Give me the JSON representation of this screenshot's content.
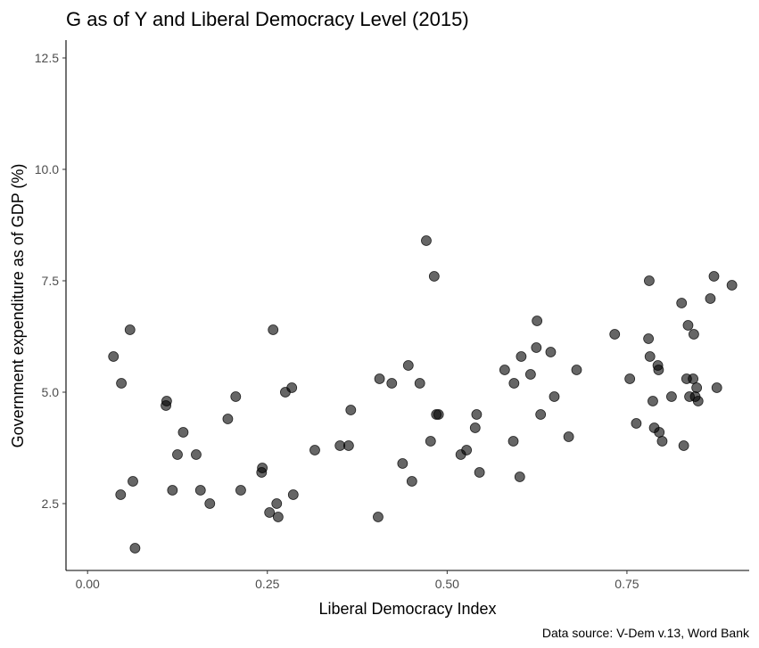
{
  "chart_data": {
    "type": "scatter",
    "title": "G as of Y and Liberal Democracy Level (2015)",
    "xlabel": "Liberal Democracy Index",
    "ylabel": "Government expenditure as of GDP (%)",
    "caption": "Data source: V-Dem v.13, Word Bank",
    "xlim": [
      -0.03,
      0.92
    ],
    "ylim": [
      1.0,
      12.9
    ],
    "x_ticks": [
      0.0,
      0.25,
      0.5,
      0.75
    ],
    "x_tick_labels": [
      "0.00",
      "0.25",
      "0.50",
      "0.75"
    ],
    "y_ticks": [
      2.5,
      5.0,
      7.5,
      10.0,
      12.5
    ],
    "y_tick_labels": [
      "2.5",
      "5.0",
      "7.5",
      "10.0",
      "12.5"
    ],
    "grid": false,
    "point_color": "#000000",
    "points": [
      {
        "x": 0.036,
        "y": 5.8
      },
      {
        "x": 0.047,
        "y": 5.2
      },
      {
        "x": 0.046,
        "y": 2.7
      },
      {
        "x": 0.059,
        "y": 6.4
      },
      {
        "x": 0.063,
        "y": 3.0
      },
      {
        "x": 0.066,
        "y": 1.5
      },
      {
        "x": 0.11,
        "y": 4.8
      },
      {
        "x": 0.109,
        "y": 4.7
      },
      {
        "x": 0.118,
        "y": 2.8
      },
      {
        "x": 0.125,
        "y": 3.6
      },
      {
        "x": 0.133,
        "y": 4.1
      },
      {
        "x": 0.151,
        "y": 3.6
      },
      {
        "x": 0.157,
        "y": 2.8
      },
      {
        "x": 0.17,
        "y": 2.5
      },
      {
        "x": 0.195,
        "y": 4.4
      },
      {
        "x": 0.206,
        "y": 4.9
      },
      {
        "x": 0.213,
        "y": 2.8
      },
      {
        "x": 0.243,
        "y": 3.3
      },
      {
        "x": 0.242,
        "y": 3.2
      },
      {
        "x": 0.253,
        "y": 2.3
      },
      {
        "x": 0.258,
        "y": 6.4
      },
      {
        "x": 0.263,
        "y": 2.5
      },
      {
        "x": 0.265,
        "y": 2.2
      },
      {
        "x": 0.275,
        "y": 5.0
      },
      {
        "x": 0.284,
        "y": 5.1
      },
      {
        "x": 0.286,
        "y": 2.7
      },
      {
        "x": 0.316,
        "y": 3.7
      },
      {
        "x": 0.351,
        "y": 3.8
      },
      {
        "x": 0.363,
        "y": 3.8
      },
      {
        "x": 0.366,
        "y": 4.6
      },
      {
        "x": 0.404,
        "y": 2.2
      },
      {
        "x": 0.406,
        "y": 5.3
      },
      {
        "x": 0.423,
        "y": 5.2
      },
      {
        "x": 0.438,
        "y": 3.4
      },
      {
        "x": 0.446,
        "y": 5.6
      },
      {
        "x": 0.451,
        "y": 3.0
      },
      {
        "x": 0.462,
        "y": 5.2
      },
      {
        "x": 0.471,
        "y": 8.4
      },
      {
        "x": 0.477,
        "y": 3.9
      },
      {
        "x": 0.482,
        "y": 7.6
      },
      {
        "x": 0.485,
        "y": 4.5
      },
      {
        "x": 0.488,
        "y": 4.5
      },
      {
        "x": 0.519,
        "y": 3.6
      },
      {
        "x": 0.527,
        "y": 3.7
      },
      {
        "x": 0.539,
        "y": 4.2
      },
      {
        "x": 0.541,
        "y": 4.5
      },
      {
        "x": 0.545,
        "y": 3.2
      },
      {
        "x": 0.58,
        "y": 5.5
      },
      {
        "x": 0.592,
        "y": 3.9
      },
      {
        "x": 0.593,
        "y": 5.2
      },
      {
        "x": 0.601,
        "y": 3.1
      },
      {
        "x": 0.603,
        "y": 5.8
      },
      {
        "x": 0.616,
        "y": 5.4
      },
      {
        "x": 0.624,
        "y": 6.0
      },
      {
        "x": 0.625,
        "y": 6.6
      },
      {
        "x": 0.63,
        "y": 4.5
      },
      {
        "x": 0.644,
        "y": 5.9
      },
      {
        "x": 0.649,
        "y": 4.9
      },
      {
        "x": 0.669,
        "y": 4.0
      },
      {
        "x": 0.68,
        "y": 5.5
      },
      {
        "x": 0.733,
        "y": 6.3
      },
      {
        "x": 0.754,
        "y": 5.3
      },
      {
        "x": 0.763,
        "y": 4.3
      },
      {
        "x": 0.781,
        "y": 7.5
      },
      {
        "x": 0.78,
        "y": 6.2
      },
      {
        "x": 0.782,
        "y": 5.8
      },
      {
        "x": 0.786,
        "y": 4.8
      },
      {
        "x": 0.788,
        "y": 4.2
      },
      {
        "x": 0.793,
        "y": 5.6
      },
      {
        "x": 0.794,
        "y": 5.5
      },
      {
        "x": 0.795,
        "y": 4.1
      },
      {
        "x": 0.799,
        "y": 3.9
      },
      {
        "x": 0.812,
        "y": 4.9
      },
      {
        "x": 0.826,
        "y": 7.0
      },
      {
        "x": 0.829,
        "y": 3.8
      },
      {
        "x": 0.835,
        "y": 6.5
      },
      {
        "x": 0.833,
        "y": 5.3
      },
      {
        "x": 0.837,
        "y": 4.9
      },
      {
        "x": 0.843,
        "y": 6.3
      },
      {
        "x": 0.842,
        "y": 5.3
      },
      {
        "x": 0.845,
        "y": 4.9
      },
      {
        "x": 0.847,
        "y": 5.1
      },
      {
        "x": 0.849,
        "y": 4.8
      },
      {
        "x": 0.866,
        "y": 7.1
      },
      {
        "x": 0.871,
        "y": 7.6
      },
      {
        "x": 0.875,
        "y": 5.1
      },
      {
        "x": 0.896,
        "y": 7.4
      }
    ]
  }
}
